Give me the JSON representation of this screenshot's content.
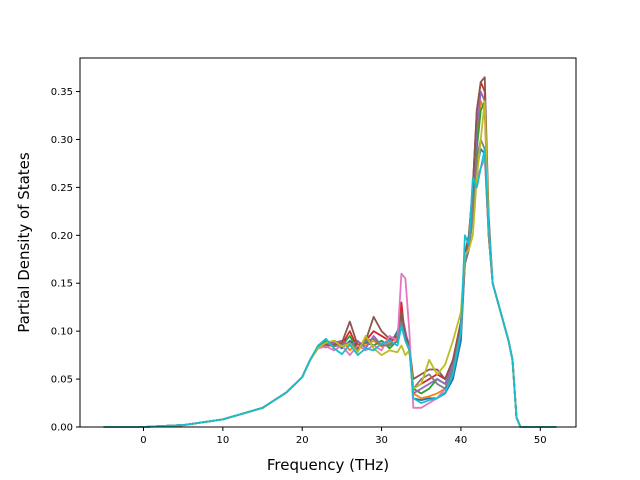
{
  "chart_data": {
    "type": "line",
    "title": "",
    "xlabel": "Frequency (THz)",
    "ylabel": "Partial Density of States",
    "xlim": [
      -8,
      54.5
    ],
    "ylim": [
      0,
      0.385
    ],
    "xticks": [
      0,
      10,
      20,
      30,
      40,
      50
    ],
    "xtick_labels": [
      "0",
      "10",
      "20",
      "30",
      "40",
      "50"
    ],
    "yticks": [
      0,
      0.05,
      0.1,
      0.15,
      0.2,
      0.25,
      0.3,
      0.35
    ],
    "ytick_labels": [
      "0.00",
      "0.05",
      "0.10",
      "0.15",
      "0.20",
      "0.25",
      "0.30",
      "0.35"
    ],
    "grid": false,
    "legend": "none",
    "series": [
      {
        "color": "#1f77b4",
        "x": [
          -5,
          0,
          5,
          10,
          15,
          18,
          20,
          21,
          22,
          23,
          24,
          25,
          26,
          27,
          28,
          29,
          30,
          31,
          32,
          32.5,
          33,
          33.5,
          34,
          35,
          36,
          37,
          38,
          39,
          40,
          40.5,
          41,
          41.5,
          42,
          42.5,
          43,
          43.5,
          44,
          45,
          46,
          46.5,
          47,
          47.5,
          52
        ],
        "y": [
          0,
          0,
          0.002,
          0.008,
          0.02,
          0.036,
          0.052,
          0.07,
          0.083,
          0.085,
          0.088,
          0.082,
          0.09,
          0.083,
          0.088,
          0.085,
          0.09,
          0.085,
          0.1,
          0.115,
          0.098,
          0.085,
          0.03,
          0.028,
          0.03,
          0.03,
          0.035,
          0.05,
          0.09,
          0.17,
          0.185,
          0.22,
          0.27,
          0.29,
          0.285,
          0.2,
          0.15,
          0.12,
          0.09,
          0.07,
          0.01,
          0,
          0
        ]
      },
      {
        "color": "#ff7f0e",
        "x": [
          -5,
          0,
          5,
          10,
          15,
          18,
          20,
          21,
          22,
          23,
          24,
          25,
          26,
          27,
          28,
          29,
          30,
          31,
          32,
          32.5,
          33,
          33.5,
          34,
          35,
          36,
          37,
          38,
          39,
          40,
          40.5,
          41,
          41.5,
          42,
          42.5,
          43,
          43.5,
          44,
          45,
          46,
          46.5,
          47,
          47.5,
          52
        ],
        "y": [
          0,
          0,
          0.002,
          0.008,
          0.02,
          0.036,
          0.052,
          0.07,
          0.082,
          0.086,
          0.084,
          0.09,
          0.08,
          0.088,
          0.085,
          0.09,
          0.084,
          0.088,
          0.095,
          0.12,
          0.1,
          0.08,
          0.035,
          0.03,
          0.032,
          0.035,
          0.04,
          0.06,
          0.1,
          0.18,
          0.19,
          0.24,
          0.3,
          0.34,
          0.33,
          0.2,
          0.15,
          0.12,
          0.09,
          0.07,
          0.01,
          0,
          0
        ]
      },
      {
        "color": "#2ca02c",
        "x": [
          -5,
          0,
          5,
          10,
          15,
          18,
          20,
          21,
          22,
          23,
          24,
          25,
          26,
          27,
          28,
          29,
          30,
          31,
          32,
          32.5,
          33,
          33.5,
          34,
          35,
          36,
          37,
          38,
          39,
          40,
          40.5,
          41,
          41.5,
          42,
          42.5,
          43,
          43.5,
          44,
          45,
          46,
          46.5,
          47,
          47.5,
          52
        ],
        "y": [
          0,
          0,
          0.002,
          0.008,
          0.02,
          0.036,
          0.052,
          0.07,
          0.084,
          0.09,
          0.086,
          0.085,
          0.095,
          0.08,
          0.09,
          0.085,
          0.09,
          0.082,
          0.09,
          0.11,
          0.095,
          0.082,
          0.04,
          0.035,
          0.04,
          0.05,
          0.045,
          0.065,
          0.1,
          0.175,
          0.19,
          0.23,
          0.29,
          0.33,
          0.34,
          0.21,
          0.15,
          0.12,
          0.09,
          0.07,
          0.01,
          0,
          0
        ]
      },
      {
        "color": "#d62728",
        "x": [
          -5,
          0,
          5,
          10,
          15,
          18,
          20,
          21,
          22,
          23,
          24,
          25,
          26,
          27,
          28,
          29,
          30,
          31,
          32,
          32.5,
          33,
          33.5,
          34,
          35,
          36,
          37,
          38,
          39,
          40,
          40.5,
          41,
          41.5,
          42,
          42.5,
          43,
          43.5,
          44,
          45,
          46,
          46.5,
          47,
          47.5,
          52
        ],
        "y": [
          0,
          0,
          0.002,
          0.008,
          0.02,
          0.036,
          0.052,
          0.07,
          0.083,
          0.087,
          0.09,
          0.086,
          0.1,
          0.082,
          0.09,
          0.1,
          0.095,
          0.09,
          0.092,
          0.13,
          0.09,
          0.085,
          0.04,
          0.045,
          0.05,
          0.055,
          0.05,
          0.07,
          0.11,
          0.18,
          0.2,
          0.25,
          0.33,
          0.36,
          0.35,
          0.2,
          0.15,
          0.12,
          0.09,
          0.07,
          0.01,
          0,
          0
        ]
      },
      {
        "color": "#9467bd",
        "x": [
          -5,
          0,
          5,
          10,
          15,
          18,
          20,
          21,
          22,
          23,
          24,
          25,
          26,
          27,
          28,
          29,
          30,
          31,
          32,
          32.5,
          33,
          33.5,
          34,
          35,
          36,
          37,
          38,
          39,
          40,
          40.5,
          41,
          41.5,
          42,
          42.5,
          43,
          43.5,
          44,
          45,
          46,
          46.5,
          47,
          47.5,
          52
        ],
        "y": [
          0,
          0,
          0.002,
          0.008,
          0.02,
          0.036,
          0.052,
          0.07,
          0.085,
          0.083,
          0.088,
          0.09,
          0.085,
          0.09,
          0.082,
          0.095,
          0.085,
          0.09,
          0.095,
          0.12,
          0.1,
          0.08,
          0.035,
          0.04,
          0.045,
          0.05,
          0.045,
          0.065,
          0.105,
          0.175,
          0.19,
          0.24,
          0.31,
          0.35,
          0.34,
          0.2,
          0.15,
          0.12,
          0.09,
          0.07,
          0.01,
          0,
          0
        ]
      },
      {
        "color": "#8c564b",
        "x": [
          -5,
          0,
          5,
          10,
          15,
          18,
          20,
          21,
          22,
          23,
          24,
          25,
          26,
          27,
          28,
          29,
          30,
          31,
          32,
          32.5,
          33,
          33.5,
          34,
          35,
          36,
          37,
          38,
          39,
          40,
          40.5,
          41,
          41.5,
          42,
          42.5,
          43,
          43.5,
          44,
          45,
          46,
          46.5,
          47,
          47.5,
          52
        ],
        "y": [
          0,
          0,
          0.002,
          0.008,
          0.02,
          0.036,
          0.052,
          0.07,
          0.084,
          0.086,
          0.085,
          0.088,
          0.11,
          0.085,
          0.09,
          0.115,
          0.1,
          0.092,
          0.095,
          0.12,
          0.095,
          0.085,
          0.05,
          0.055,
          0.06,
          0.06,
          0.05,
          0.07,
          0.11,
          0.18,
          0.2,
          0.25,
          0.33,
          0.36,
          0.365,
          0.22,
          0.15,
          0.12,
          0.09,
          0.07,
          0.01,
          0,
          0
        ]
      },
      {
        "color": "#e377c2",
        "x": [
          -5,
          0,
          5,
          10,
          15,
          18,
          20,
          21,
          22,
          23,
          24,
          25,
          26,
          27,
          28,
          29,
          30,
          31,
          32,
          32.5,
          33,
          33.5,
          34,
          35,
          36,
          37,
          38,
          39,
          40,
          40.5,
          41,
          41.5,
          42,
          42.5,
          43,
          43.5,
          44,
          45,
          46,
          46.5,
          47,
          47.5,
          52
        ],
        "y": [
          0,
          0,
          0.002,
          0.008,
          0.02,
          0.036,
          0.052,
          0.07,
          0.082,
          0.084,
          0.08,
          0.085,
          0.075,
          0.085,
          0.08,
          0.085,
          0.08,
          0.095,
          0.09,
          0.16,
          0.155,
          0.1,
          0.02,
          0.02,
          0.025,
          0.03,
          0.04,
          0.06,
          0.1,
          0.17,
          0.185,
          0.22,
          0.26,
          0.27,
          0.28,
          0.2,
          0.15,
          0.12,
          0.09,
          0.07,
          0.01,
          0,
          0
        ]
      },
      {
        "color": "#7f7f7f",
        "x": [
          -5,
          0,
          5,
          10,
          15,
          18,
          20,
          21,
          22,
          23,
          24,
          25,
          26,
          27,
          28,
          29,
          30,
          31,
          32,
          32.5,
          33,
          33.5,
          34,
          35,
          36,
          37,
          38,
          39,
          40,
          40.5,
          41,
          41.5,
          42,
          42.5,
          43,
          43.5,
          44,
          45,
          46,
          46.5,
          47,
          47.5,
          52
        ],
        "y": [
          0,
          0,
          0.002,
          0.008,
          0.02,
          0.036,
          0.052,
          0.07,
          0.084,
          0.088,
          0.084,
          0.086,
          0.088,
          0.08,
          0.09,
          0.092,
          0.085,
          0.085,
          0.09,
          0.11,
          0.09,
          0.08,
          0.04,
          0.05,
          0.055,
          0.045,
          0.04,
          0.06,
          0.1,
          0.17,
          0.185,
          0.22,
          0.28,
          0.3,
          0.29,
          0.2,
          0.15,
          0.12,
          0.09,
          0.07,
          0.01,
          0,
          0
        ]
      },
      {
        "color": "#bcbd22",
        "x": [
          -5,
          0,
          5,
          10,
          15,
          18,
          20,
          21,
          22,
          23,
          24,
          25,
          26,
          27,
          28,
          29,
          30,
          31,
          32,
          32.5,
          33,
          33.5,
          34,
          35,
          36,
          37,
          38,
          39,
          40,
          40.5,
          41,
          41.5,
          42,
          42.5,
          43,
          43.5,
          44,
          45,
          46,
          46.5,
          47,
          47.5,
          52
        ],
        "y": [
          0,
          0,
          0.002,
          0.008,
          0.02,
          0.036,
          0.052,
          0.07,
          0.082,
          0.088,
          0.09,
          0.084,
          0.087,
          0.078,
          0.095,
          0.082,
          0.075,
          0.08,
          0.078,
          0.085,
          0.075,
          0.08,
          0.04,
          0.045,
          0.07,
          0.055,
          0.065,
          0.09,
          0.12,
          0.18,
          0.185,
          0.2,
          0.26,
          0.3,
          0.34,
          0.21,
          0.15,
          0.12,
          0.09,
          0.07,
          0.01,
          0,
          0
        ]
      },
      {
        "color": "#17becf",
        "x": [
          -5,
          0,
          5,
          10,
          15,
          18,
          20,
          21,
          22,
          23,
          24,
          25,
          26,
          27,
          28,
          29,
          30,
          31,
          32,
          32.5,
          33,
          33.5,
          34,
          35,
          36,
          37,
          38,
          39,
          40,
          40.5,
          41,
          41.5,
          42,
          42.5,
          43,
          43.5,
          44,
          45,
          46,
          46.5,
          47,
          47.5,
          52
        ],
        "y": [
          0,
          0,
          0.002,
          0.008,
          0.02,
          0.036,
          0.052,
          0.07,
          0.085,
          0.092,
          0.082,
          0.076,
          0.086,
          0.075,
          0.082,
          0.08,
          0.087,
          0.09,
          0.085,
          0.105,
          0.09,
          0.082,
          0.03,
          0.025,
          0.028,
          0.03,
          0.036,
          0.055,
          0.1,
          0.2,
          0.19,
          0.26,
          0.25,
          0.27,
          0.29,
          0.21,
          0.15,
          0.12,
          0.09,
          0.07,
          0.01,
          0,
          0
        ]
      }
    ]
  }
}
